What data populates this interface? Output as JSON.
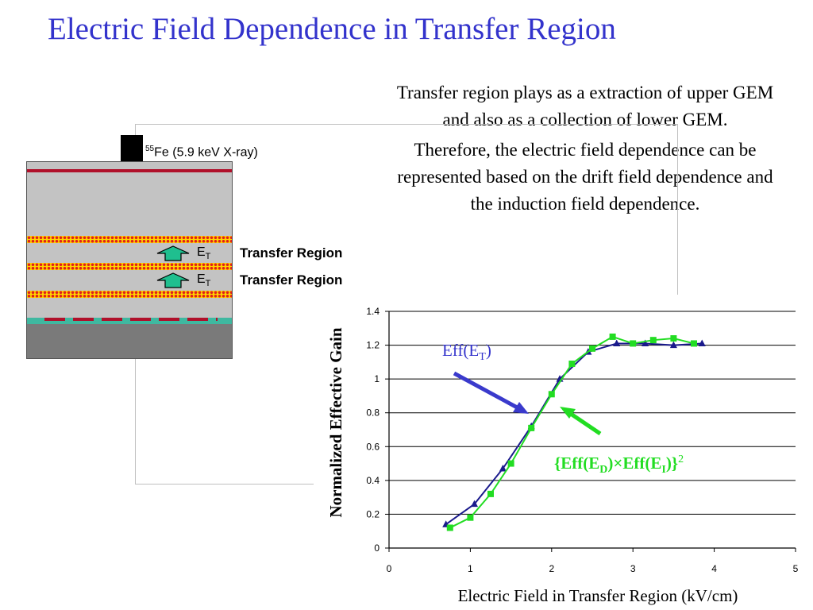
{
  "slide": {
    "title": "Electric Field Dependence in Transfer Region",
    "paragraph1": "Transfer region plays as a extraction of upper GEM and also as a collection of lower GEM.",
    "paragraph2": "Therefore, the electric field dependence can be represented based on the drift field dependence and the induction field dependence."
  },
  "diagram": {
    "source_isotope_mass": "55",
    "source_label": "Fe (5.9 keV X-ray)",
    "field_label_main": "E",
    "field_label_sub": "T",
    "region_label_1": "Transfer Region",
    "region_label_2": "Transfer Region",
    "colors": {
      "chamber": "#c3c3c3",
      "gem_base": "#ffd400",
      "gem_dots": "#e0201c",
      "drift_plane": "#b0102a",
      "readout": "#3fb8a0",
      "pcb": "#7a7a7a",
      "arrow": "#1fbf8f"
    }
  },
  "chart_data": {
    "type": "line",
    "xlabel": "Electric Field in Transfer Region (kV/cm)",
    "ylabel": "Normalized Effective Gain",
    "xlim": [
      0,
      5
    ],
    "ylim": [
      0,
      1.4
    ],
    "x_ticks": [
      "0",
      "1",
      "2",
      "3",
      "4",
      "5"
    ],
    "y_ticks": [
      "0",
      "0.2",
      "0.4",
      "0.6",
      "0.8",
      "1",
      "1.2",
      "1.4"
    ],
    "grid": "horizontal",
    "series": [
      {
        "marker": "triangle",
        "color": "#1a1a8c",
        "x": [
          0.7,
          1.05,
          1.4,
          1.75,
          2.1,
          2.45,
          2.8,
          3.15,
          3.5,
          3.85
        ],
        "y": [
          0.14,
          0.26,
          0.47,
          0.72,
          1.0,
          1.16,
          1.21,
          1.21,
          1.2,
          1.21
        ]
      },
      {
        "marker": "square",
        "color": "#22dd22",
        "x": [
          0.75,
          1.0,
          1.25,
          1.5,
          1.75,
          2.0,
          2.25,
          2.5,
          2.75,
          3.0,
          3.25,
          3.5,
          3.75
        ],
        "y": [
          0.12,
          0.18,
          0.32,
          0.5,
          0.71,
          0.91,
          1.09,
          1.18,
          1.25,
          1.21,
          1.23,
          1.24,
          1.21
        ]
      }
    ],
    "annotations": [
      {
        "name": "eff-et-label",
        "main": "Eff(E",
        "sub": "T",
        "tail": ")",
        "color": "#3333cc"
      },
      {
        "name": "eff-product-label",
        "text_a": "{Eff(E",
        "sub_a": "D",
        "text_b": ")×Eff(E",
        "sub_b": "I",
        "text_c": ")}",
        "sup": "2",
        "color": "#22dd22"
      }
    ]
  }
}
